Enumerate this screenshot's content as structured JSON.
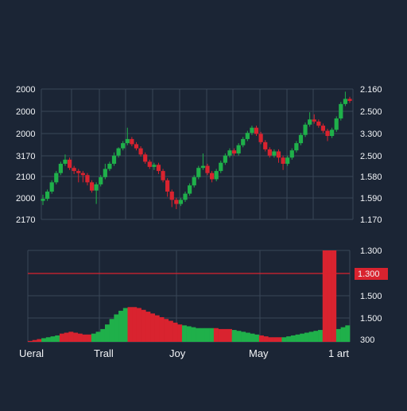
{
  "colors": {
    "background": "#1b2535",
    "grid": "#3a4658",
    "up": "#1fb04a",
    "down": "#d9232f",
    "label": "#f2f4f7",
    "hline": "#d9232f"
  },
  "chart_data": [
    {
      "type": "candlestick",
      "title": "",
      "left_axis_labels": [
        "2000",
        "2000",
        "2000",
        "3170",
        "2100",
        "2000",
        "2170"
      ],
      "right_axis_labels": [
        "2.160",
        "2.500",
        "3.300",
        "2.500",
        "1.580",
        "1.590",
        "1.170"
      ],
      "grid": true,
      "price_range": [
        0,
        100
      ],
      "candles": [
        {
          "o": 18,
          "c": 20,
          "h": 24,
          "l": 14
        },
        {
          "o": 20,
          "c": 27,
          "h": 29,
          "l": 18
        },
        {
          "o": 27,
          "c": 36,
          "h": 38,
          "l": 25
        },
        {
          "o": 36,
          "c": 45,
          "h": 47,
          "l": 34
        },
        {
          "o": 45,
          "c": 54,
          "h": 56,
          "l": 43
        },
        {
          "o": 54,
          "c": 58,
          "h": 63,
          "l": 52
        },
        {
          "o": 58,
          "c": 50,
          "h": 60,
          "l": 48
        },
        {
          "o": 50,
          "c": 47,
          "h": 52,
          "l": 44
        },
        {
          "o": 47,
          "c": 45,
          "h": 49,
          "l": 36
        },
        {
          "o": 45,
          "c": 43,
          "h": 47,
          "l": 36
        },
        {
          "o": 43,
          "c": 36,
          "h": 45,
          "l": 33
        },
        {
          "o": 36,
          "c": 28,
          "h": 38,
          "l": 26
        },
        {
          "o": 28,
          "c": 34,
          "h": 36,
          "l": 15
        },
        {
          "o": 34,
          "c": 41,
          "h": 43,
          "l": 32
        },
        {
          "o": 41,
          "c": 49,
          "h": 54,
          "l": 39
        },
        {
          "o": 49,
          "c": 54,
          "h": 56,
          "l": 47
        },
        {
          "o": 54,
          "c": 62,
          "h": 65,
          "l": 52
        },
        {
          "o": 62,
          "c": 69,
          "h": 70,
          "l": 60
        },
        {
          "o": 69,
          "c": 74,
          "h": 76,
          "l": 67
        },
        {
          "o": 74,
          "c": 78,
          "h": 89,
          "l": 72
        },
        {
          "o": 78,
          "c": 73,
          "h": 80,
          "l": 71
        },
        {
          "o": 73,
          "c": 69,
          "h": 75,
          "l": 67
        },
        {
          "o": 69,
          "c": 63,
          "h": 71,
          "l": 61
        },
        {
          "o": 63,
          "c": 56,
          "h": 65,
          "l": 54
        },
        {
          "o": 56,
          "c": 51,
          "h": 58,
          "l": 49
        },
        {
          "o": 51,
          "c": 53,
          "h": 55,
          "l": 48
        },
        {
          "o": 53,
          "c": 47,
          "h": 55,
          "l": 44
        },
        {
          "o": 47,
          "c": 38,
          "h": 49,
          "l": 36
        },
        {
          "o": 38,
          "c": 27,
          "h": 40,
          "l": 22
        },
        {
          "o": 27,
          "c": 19,
          "h": 29,
          "l": 12
        },
        {
          "o": 19,
          "c": 15,
          "h": 21,
          "l": 10
        },
        {
          "o": 15,
          "c": 19,
          "h": 21,
          "l": 13
        },
        {
          "o": 19,
          "c": 25,
          "h": 27,
          "l": 17
        },
        {
          "o": 25,
          "c": 33,
          "h": 35,
          "l": 23
        },
        {
          "o": 33,
          "c": 41,
          "h": 43,
          "l": 31
        },
        {
          "o": 41,
          "c": 50,
          "h": 52,
          "l": 39
        },
        {
          "o": 50,
          "c": 52,
          "h": 64,
          "l": 48
        },
        {
          "o": 52,
          "c": 45,
          "h": 54,
          "l": 43
        },
        {
          "o": 45,
          "c": 39,
          "h": 47,
          "l": 36
        },
        {
          "o": 39,
          "c": 47,
          "h": 49,
          "l": 37
        },
        {
          "o": 47,
          "c": 55,
          "h": 57,
          "l": 45
        },
        {
          "o": 55,
          "c": 62,
          "h": 64,
          "l": 53
        },
        {
          "o": 62,
          "c": 67,
          "h": 69,
          "l": 60
        },
        {
          "o": 67,
          "c": 64,
          "h": 69,
          "l": 62
        },
        {
          "o": 64,
          "c": 72,
          "h": 74,
          "l": 62
        },
        {
          "o": 72,
          "c": 78,
          "h": 80,
          "l": 70
        },
        {
          "o": 78,
          "c": 84,
          "h": 86,
          "l": 76
        },
        {
          "o": 84,
          "c": 89,
          "h": 91,
          "l": 82
        },
        {
          "o": 89,
          "c": 83,
          "h": 91,
          "l": 81
        },
        {
          "o": 83,
          "c": 75,
          "h": 85,
          "l": 73
        },
        {
          "o": 75,
          "c": 68,
          "h": 77,
          "l": 66
        },
        {
          "o": 68,
          "c": 62,
          "h": 70,
          "l": 60
        },
        {
          "o": 62,
          "c": 66,
          "h": 68,
          "l": 60
        },
        {
          "o": 66,
          "c": 60,
          "h": 68,
          "l": 55
        },
        {
          "o": 60,
          "c": 54,
          "h": 62,
          "l": 48
        },
        {
          "o": 54,
          "c": 60,
          "h": 62,
          "l": 52
        },
        {
          "o": 60,
          "c": 67,
          "h": 69,
          "l": 58
        },
        {
          "o": 67,
          "c": 74,
          "h": 76,
          "l": 65
        },
        {
          "o": 74,
          "c": 82,
          "h": 84,
          "l": 72
        },
        {
          "o": 82,
          "c": 92,
          "h": 94,
          "l": 80
        },
        {
          "o": 92,
          "c": 97,
          "h": 104,
          "l": 90
        },
        {
          "o": 97,
          "c": 95,
          "h": 102,
          "l": 93
        },
        {
          "o": 95,
          "c": 91,
          "h": 97,
          "l": 89
        },
        {
          "o": 91,
          "c": 86,
          "h": 93,
          "l": 84
        },
        {
          "o": 86,
          "c": 81,
          "h": 88,
          "l": 76
        },
        {
          "o": 81,
          "c": 87,
          "h": 89,
          "l": 79
        },
        {
          "o": 87,
          "c": 98,
          "h": 100,
          "l": 85
        },
        {
          "o": 98,
          "c": 112,
          "h": 114,
          "l": 96
        },
        {
          "o": 112,
          "c": 117,
          "h": 124,
          "l": 110
        },
        {
          "o": 117,
          "c": 115,
          "h": 119,
          "l": 113
        }
      ]
    },
    {
      "type": "bar",
      "title": "",
      "right_axis_labels": [
        "1.300",
        "1.300",
        "1.500",
        "1.500",
        "300"
      ],
      "highlight_label": "1.300",
      "x_labels": [
        "Ueral",
        "Trall",
        "Joy",
        "May",
        "1 art"
      ],
      "value_range": [
        0,
        100
      ],
      "bars": [
        {
          "v": 1,
          "d": 1
        },
        {
          "v": 2,
          "d": 1
        },
        {
          "v": 3,
          "d": 1
        },
        {
          "v": 4,
          "d": 0
        },
        {
          "v": 5,
          "d": 0
        },
        {
          "v": 6,
          "d": 0
        },
        {
          "v": 7,
          "d": 0
        },
        {
          "v": 9,
          "d": 1
        },
        {
          "v": 10,
          "d": 1
        },
        {
          "v": 11,
          "d": 1
        },
        {
          "v": 10,
          "d": 1
        },
        {
          "v": 9,
          "d": 1
        },
        {
          "v": 8,
          "d": 1
        },
        {
          "v": 8,
          "d": 1
        },
        {
          "v": 9,
          "d": 0
        },
        {
          "v": 11,
          "d": 0
        },
        {
          "v": 14,
          "d": 0
        },
        {
          "v": 19,
          "d": 0
        },
        {
          "v": 25,
          "d": 0
        },
        {
          "v": 30,
          "d": 0
        },
        {
          "v": 34,
          "d": 0
        },
        {
          "v": 37,
          "d": 0
        },
        {
          "v": 38,
          "d": 1
        },
        {
          "v": 38,
          "d": 1
        },
        {
          "v": 37,
          "d": 1
        },
        {
          "v": 35,
          "d": 1
        },
        {
          "v": 33,
          "d": 1
        },
        {
          "v": 31,
          "d": 1
        },
        {
          "v": 29,
          "d": 1
        },
        {
          "v": 27,
          "d": 1
        },
        {
          "v": 25,
          "d": 1
        },
        {
          "v": 23,
          "d": 1
        },
        {
          "v": 21,
          "d": 1
        },
        {
          "v": 19,
          "d": 1
        },
        {
          "v": 18,
          "d": 0
        },
        {
          "v": 17,
          "d": 0
        },
        {
          "v": 16,
          "d": 0
        },
        {
          "v": 15,
          "d": 0
        },
        {
          "v": 15,
          "d": 0
        },
        {
          "v": 15,
          "d": 0
        },
        {
          "v": 15,
          "d": 0
        },
        {
          "v": 15,
          "d": 1
        },
        {
          "v": 14,
          "d": 1
        },
        {
          "v": 14,
          "d": 1
        },
        {
          "v": 14,
          "d": 1
        },
        {
          "v": 13,
          "d": 0
        },
        {
          "v": 12,
          "d": 0
        },
        {
          "v": 11,
          "d": 0
        },
        {
          "v": 10,
          "d": 0
        },
        {
          "v": 9,
          "d": 0
        },
        {
          "v": 8,
          "d": 0
        },
        {
          "v": 7,
          "d": 1
        },
        {
          "v": 6,
          "d": 1
        },
        {
          "v": 5,
          "d": 1
        },
        {
          "v": 5,
          "d": 1
        },
        {
          "v": 5,
          "d": 1
        },
        {
          "v": 5,
          "d": 0
        },
        {
          "v": 6,
          "d": 0
        },
        {
          "v": 7,
          "d": 0
        },
        {
          "v": 8,
          "d": 0
        },
        {
          "v": 9,
          "d": 0
        },
        {
          "v": 10,
          "d": 0
        },
        {
          "v": 11,
          "d": 0
        },
        {
          "v": 12,
          "d": 0
        },
        {
          "v": 13,
          "d": 0
        },
        {
          "v": 100,
          "d": 1
        },
        {
          "v": 100,
          "d": 1
        },
        {
          "v": 100,
          "d": 1
        },
        {
          "v": 14,
          "d": 0
        },
        {
          "v": 16,
          "d": 0
        },
        {
          "v": 18,
          "d": 0
        }
      ]
    }
  ]
}
